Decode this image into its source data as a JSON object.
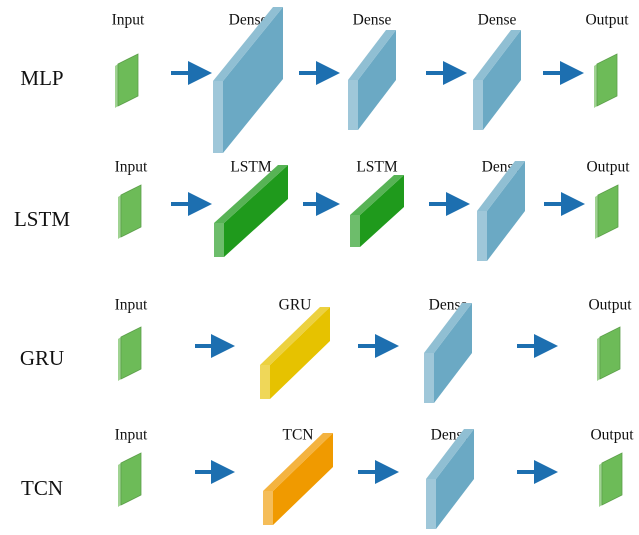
{
  "colors": {
    "input": "#6dbb58",
    "dense": "#6ba9c4",
    "lstm": "#1f9a1c",
    "gru": "#e6c200",
    "tcn": "#f09a00",
    "arrow": "#1d6fb0"
  },
  "rows": [
    {
      "name": "MLP",
      "layers": [
        {
          "label": "Input",
          "kind": "input"
        },
        {
          "label": "Dense",
          "kind": "dense"
        },
        {
          "label": "Dense",
          "kind": "dense"
        },
        {
          "label": "Dense",
          "kind": "dense"
        },
        {
          "label": "Output",
          "kind": "input"
        }
      ]
    },
    {
      "name": "LSTM",
      "layers": [
        {
          "label": "Input",
          "kind": "input"
        },
        {
          "label": "LSTM",
          "kind": "lstm"
        },
        {
          "label": "LSTM",
          "kind": "lstm"
        },
        {
          "label": "Dense",
          "kind": "dense"
        },
        {
          "label": "Output",
          "kind": "input"
        }
      ]
    },
    {
      "name": "GRU",
      "layers": [
        {
          "label": "Input",
          "kind": "input"
        },
        {
          "label": "GRU",
          "kind": "gru"
        },
        {
          "label": "Dense",
          "kind": "dense"
        },
        {
          "label": "Output",
          "kind": "input"
        }
      ]
    },
    {
      "name": "TCN",
      "layers": [
        {
          "label": "Input",
          "kind": "input"
        },
        {
          "label": "TCN",
          "kind": "tcn"
        },
        {
          "label": "Dense",
          "kind": "dense"
        },
        {
          "label": "Output",
          "kind": "input"
        }
      ]
    }
  ]
}
